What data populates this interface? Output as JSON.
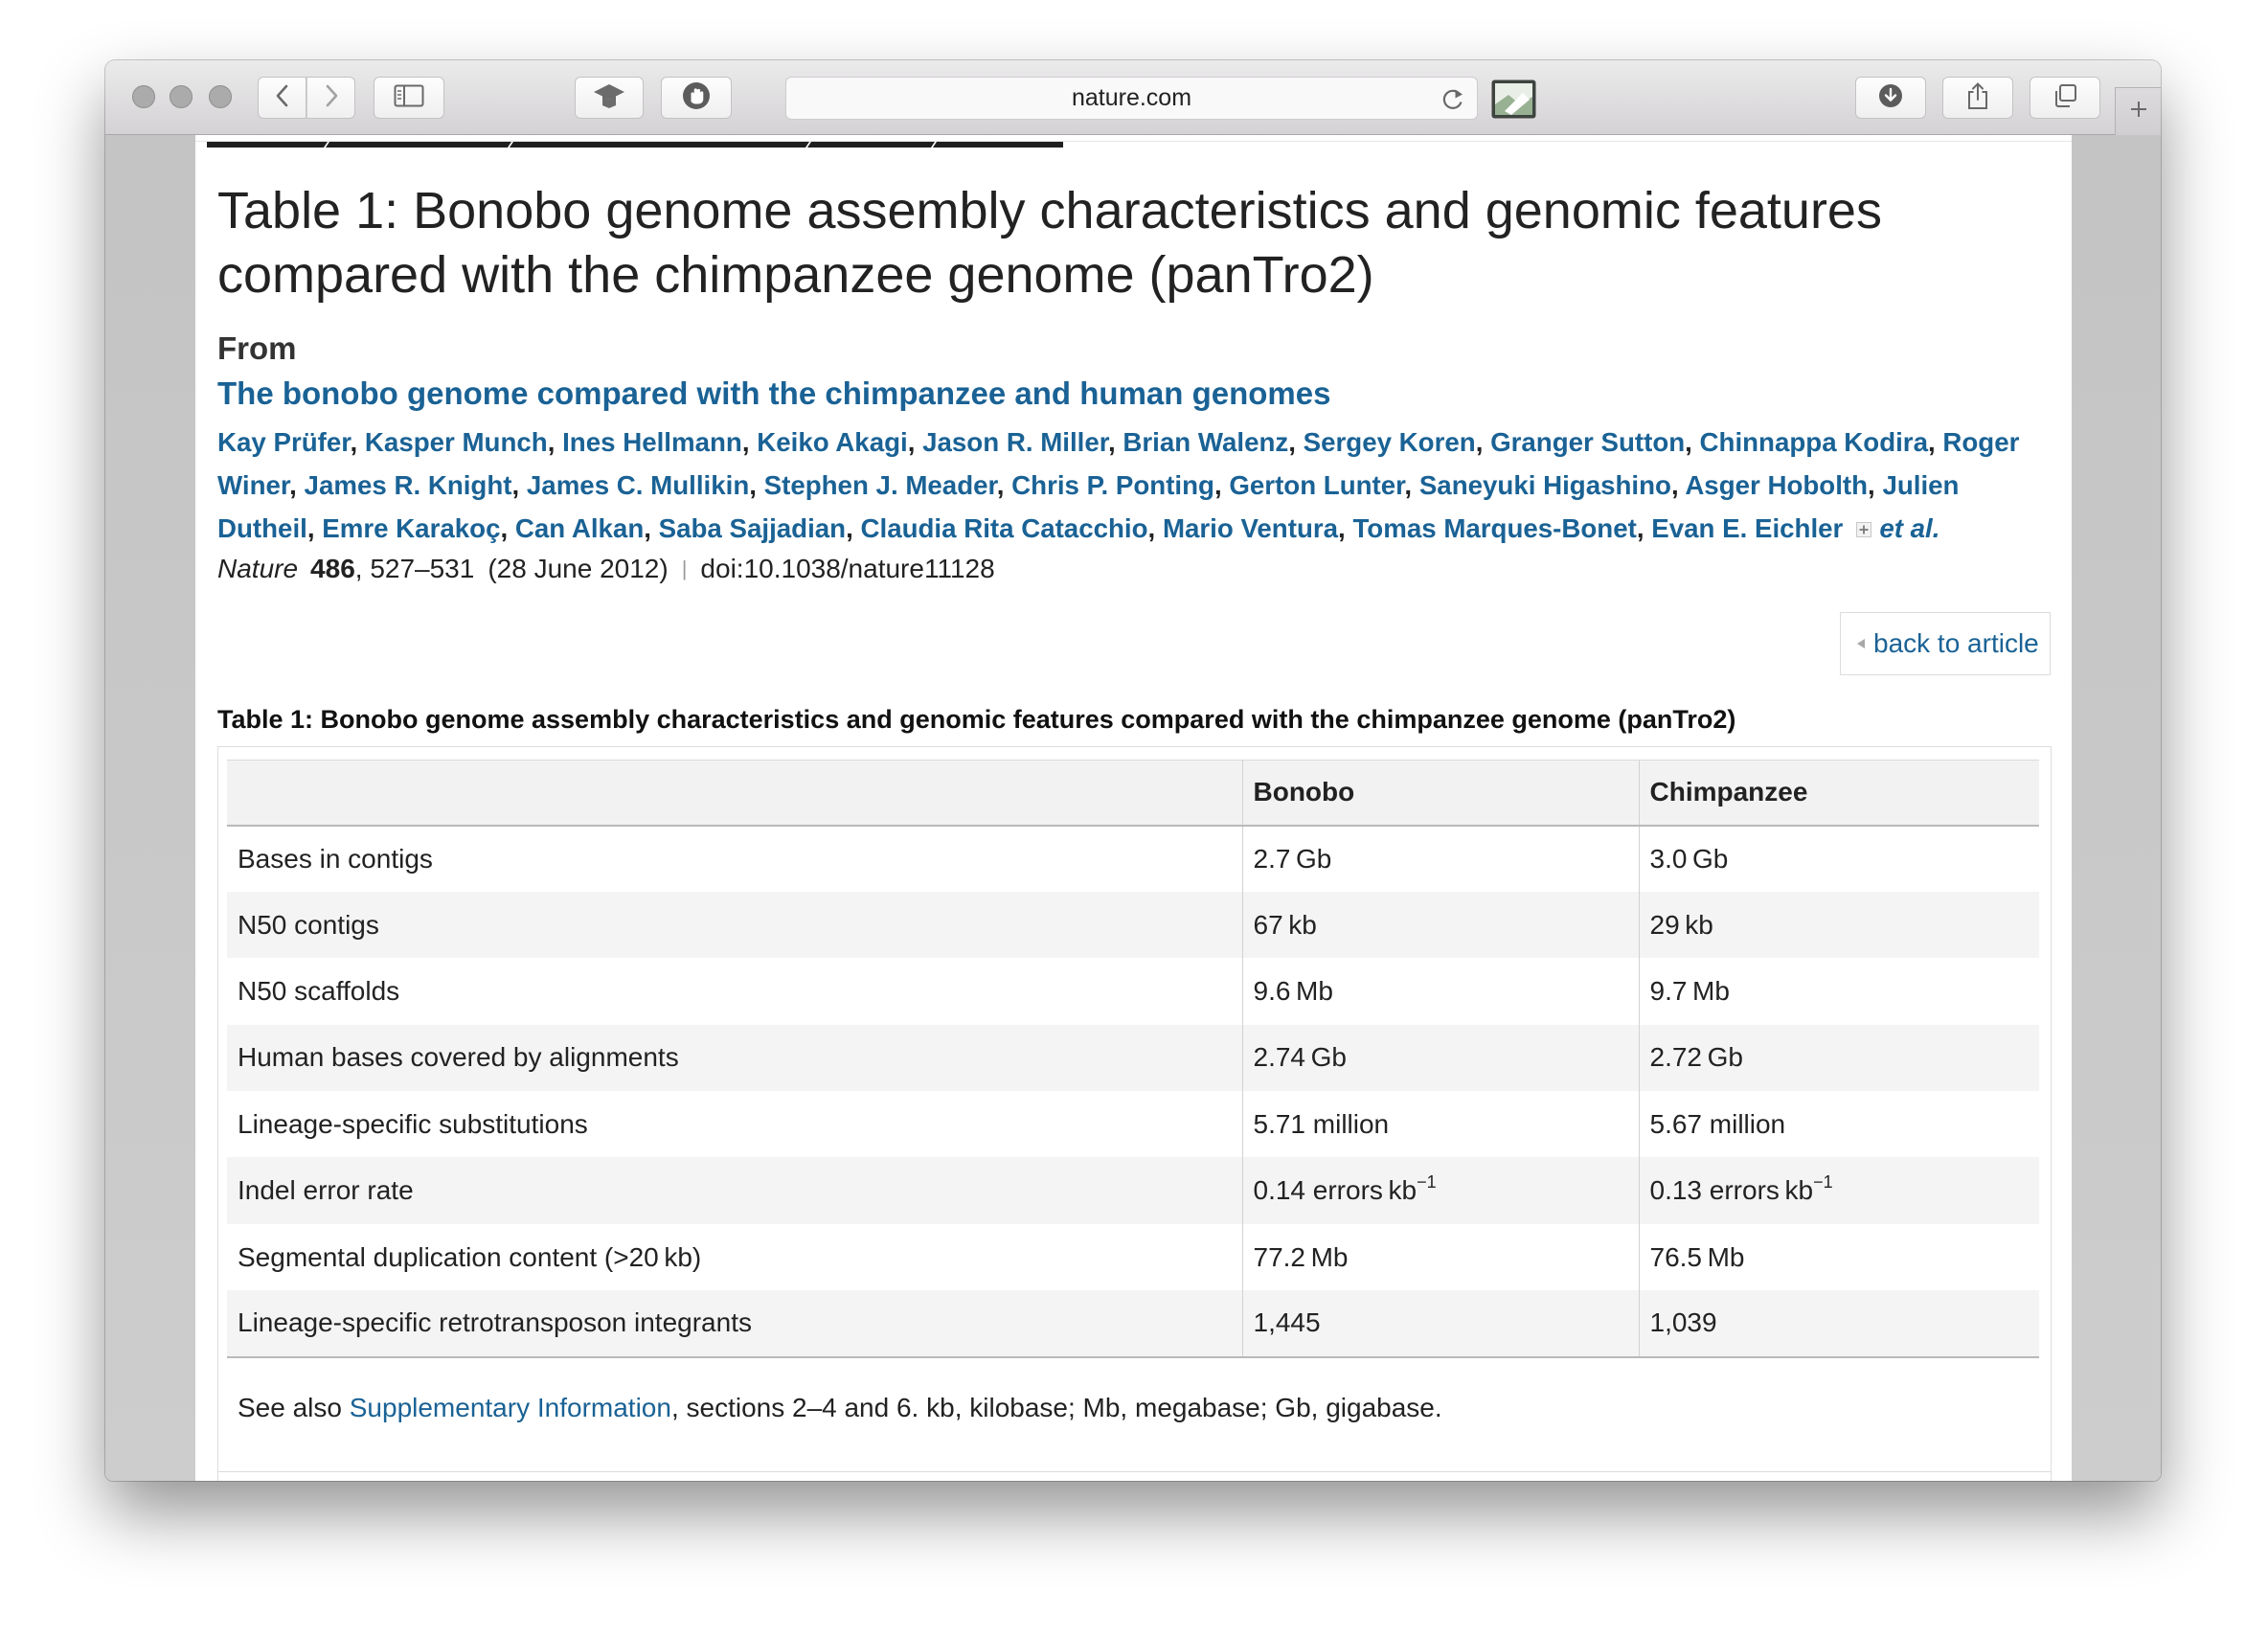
{
  "browser": {
    "address": "nature.com",
    "icons": {
      "close": "close-dot-icon",
      "minimize": "minimize-dot-icon",
      "zoom": "zoom-dot-icon",
      "back": "chevron-left-icon",
      "forward": "chevron-right-icon",
      "sidebar": "sidebar-icon",
      "extension_a": "mortarboard-icon",
      "extension_b": "hand-icon",
      "reload": "reload-icon",
      "extension_badge": "picture-badge-icon",
      "download": "download-icon",
      "share": "share-icon",
      "tabs": "tabs-overview-icon",
      "new_tab": "plus-icon"
    }
  },
  "colors": {
    "link": "#1a6295",
    "text": "#222222",
    "table_header_bg": "#f2f2f2",
    "table_alt_row_bg": "#f4f4f4"
  },
  "article": {
    "page_title": "Table 1: Bonobo genome assembly characteristics and genomic features compared with the chimpanzee genome (panTro2)",
    "from_label": "From",
    "title": "The bonobo genome compared with the chimpanzee and human genomes",
    "authors": [
      "Kay Prüfer",
      "Kasper Munch",
      "Ines Hellmann",
      "Keiko Akagi",
      "Jason R. Miller",
      "Brian Walenz",
      "Sergey Koren",
      "Granger Sutton",
      "Chinnappa Kodira",
      "Roger Winer",
      "James R. Knight",
      "James C. Mullikin",
      "Stephen J. Meader",
      "Chris P. Ponting",
      "Gerton Lunter",
      "Saneyuki Higashino",
      "Asger Hobolth",
      "Julien Dutheil",
      "Emre Karakoç",
      "Can Alkan",
      "Saba Sajjadian",
      "Claudia Rita Catacchio",
      "Mario Ventura",
      "Tomas Marques-Bonet",
      "Evan E. Eichler"
    ],
    "author_separator": ",",
    "et_al": "et al.",
    "citation": {
      "journal": "Nature",
      "volume": "486",
      "pages": ", 527–531",
      "date": "(28 June 2012)",
      "separator": "|",
      "doi": "doi:10.1038/nature11128"
    },
    "back_link": "back to article"
  },
  "table": {
    "caption": "Table 1: Bonobo genome assembly characteristics and genomic features compared with the chimpanzee genome (panTro2)",
    "columns": [
      "Bonobo",
      "Chimpanzee"
    ],
    "rows": [
      {
        "feature": "Bases in contigs",
        "bonobo": "2.7 Gb",
        "chimpanzee": "3.0 Gb"
      },
      {
        "feature": "N50 contigs",
        "bonobo": "67 kb",
        "chimpanzee": "29 kb"
      },
      {
        "feature": "N50 scaffolds",
        "bonobo": "9.6 Mb",
        "chimpanzee": "9.7 Mb"
      },
      {
        "feature": "Human bases covered by alignments",
        "bonobo": "2.74 Gb",
        "chimpanzee": "2.72 Gb"
      },
      {
        "feature": "Lineage-specific substitutions",
        "bonobo": "5.71 million",
        "chimpanzee": "5.67 million"
      },
      {
        "feature": "Indel error rate",
        "bonobo": "0.14 errors kb",
        "bonobo_sup": "−1",
        "chimpanzee": "0.13 errors kb",
        "chimpanzee_sup": "−1"
      },
      {
        "feature": "Segmental duplication content (>20 kb)",
        "bonobo": "77.2 Mb",
        "chimpanzee": "76.5 Mb"
      },
      {
        "feature": "Lineage-specific retrotransposon integrants",
        "bonobo": "1,445",
        "chimpanzee": "1,039"
      }
    ],
    "footnote": {
      "prefix": "See also ",
      "link": "Supplementary Information",
      "suffix": ", sections 2–4 and 6. kb, kilobase; Mb, megabase; Gb, gigabase."
    }
  }
}
